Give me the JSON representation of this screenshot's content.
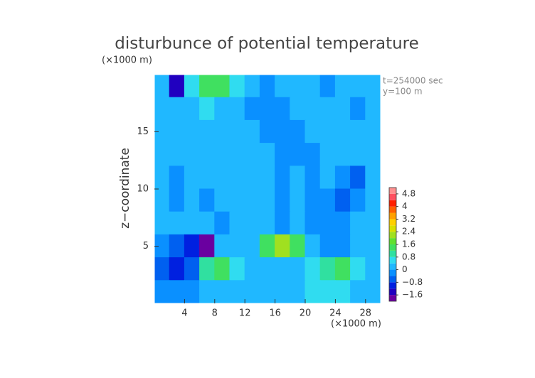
{
  "chart_data": {
    "type": "contour",
    "title": "disturbunce of potential temperature",
    "y_unit": "(×1000 m)",
    "x_unit": "(×1000 m)",
    "y_label": "z−coordinate",
    "annotations": [
      "t=254000 sec",
      "y=100 m"
    ],
    "xlim": [
      0,
      30
    ],
    "ylim": [
      0,
      20
    ],
    "xticks": [
      4,
      8,
      12,
      16,
      20,
      24,
      28
    ],
    "yticks": [
      5,
      10,
      15
    ],
    "x": [
      1,
      3,
      5,
      7,
      9,
      11,
      13,
      15,
      17,
      19,
      21,
      23,
      25,
      27,
      29
    ],
    "z": [
      19,
      17,
      15,
      13,
      11,
      9,
      7,
      5,
      3,
      1
    ],
    "values": [
      [
        0.3,
        -1.4,
        0.6,
        1.5,
        1.2,
        0.6,
        0.2,
        -0.2,
        0.2,
        0.2,
        0.1,
        -0.1,
        0.1,
        0.2,
        0.3
      ],
      [
        0.1,
        0.0,
        0.2,
        0.4,
        0.3,
        0.1,
        -0.3,
        -0.2,
        -0.2,
        0.1,
        0.1,
        0.1,
        0.1,
        -0.1,
        0.1
      ],
      [
        0.1,
        0.1,
        0.1,
        0.1,
        0.1,
        0.1,
        0.1,
        -0.2,
        -0.3,
        -0.3,
        0.1,
        0.1,
        0.1,
        0.1,
        0.1
      ],
      [
        0.1,
        0.1,
        0.2,
        0.1,
        0.1,
        0.1,
        0.1,
        0.1,
        -0.3,
        -0.2,
        -0.3,
        0.1,
        0.1,
        0.2,
        0.1
      ],
      [
        0.1,
        -0.2,
        0.1,
        0.1,
        0.2,
        0.1,
        0.1,
        0.1,
        -0.3,
        0.1,
        -0.2,
        0.1,
        -0.3,
        -0.5,
        0.1
      ],
      [
        0.1,
        -0.2,
        0.1,
        -0.1,
        0.1,
        0.1,
        0.2,
        0.1,
        -0.2,
        0.1,
        -0.3,
        -0.2,
        -0.5,
        -0.3,
        0.2
      ],
      [
        0.1,
        0.1,
        0.2,
        0.1,
        -0.2,
        0.1,
        0.1,
        0.1,
        -0.2,
        0.1,
        -0.3,
        -0.4,
        -0.3,
        0.1,
        0.1
      ],
      [
        -0.3,
        -0.8,
        -1.2,
        -1.7,
        0.2,
        0.1,
        0.3,
        1.2,
        2.0,
        1.4,
        0.2,
        -0.4,
        -0.3,
        0.2,
        0.1
      ],
      [
        -0.6,
        -1.0,
        -0.5,
        1.0,
        1.4,
        0.4,
        0.1,
        0.2,
        0.3,
        0.3,
        0.5,
        0.8,
        1.2,
        0.6,
        0.1
      ],
      [
        -0.3,
        -0.3,
        -0.1,
        0.2,
        0.3,
        0.1,
        0.2,
        0.1,
        0.1,
        0.2,
        0.4,
        0.6,
        0.5,
        0.3,
        0.1
      ]
    ],
    "levels": [
      -2.0,
      -1.6,
      -1.2,
      -0.8,
      -0.4,
      0,
      0.4,
      0.8,
      1.2,
      1.6,
      2.0,
      2.4,
      2.8,
      3.2,
      3.6,
      4.0,
      4.4,
      4.8,
      5.2
    ],
    "colors": [
      "#6a00a0",
      "#2000c0",
      "#0020e0",
      "#0060f0",
      "#0a90ff",
      "#20b8ff",
      "#30dcf0",
      "#30e0a0",
      "#40e060",
      "#60e030",
      "#a0e020",
      "#d8e000",
      "#ffd000",
      "#ffa000",
      "#ff6000",
      "#ff2000",
      "#ff5060",
      "#ff9090"
    ],
    "colorbar_ticks": [
      {
        "value": -1.6,
        "label": "−1.6"
      },
      {
        "value": -0.8,
        "label": "−0.8"
      },
      0,
      0.8,
      1.6,
      2.4,
      3.2,
      4,
      4.8
    ]
  }
}
